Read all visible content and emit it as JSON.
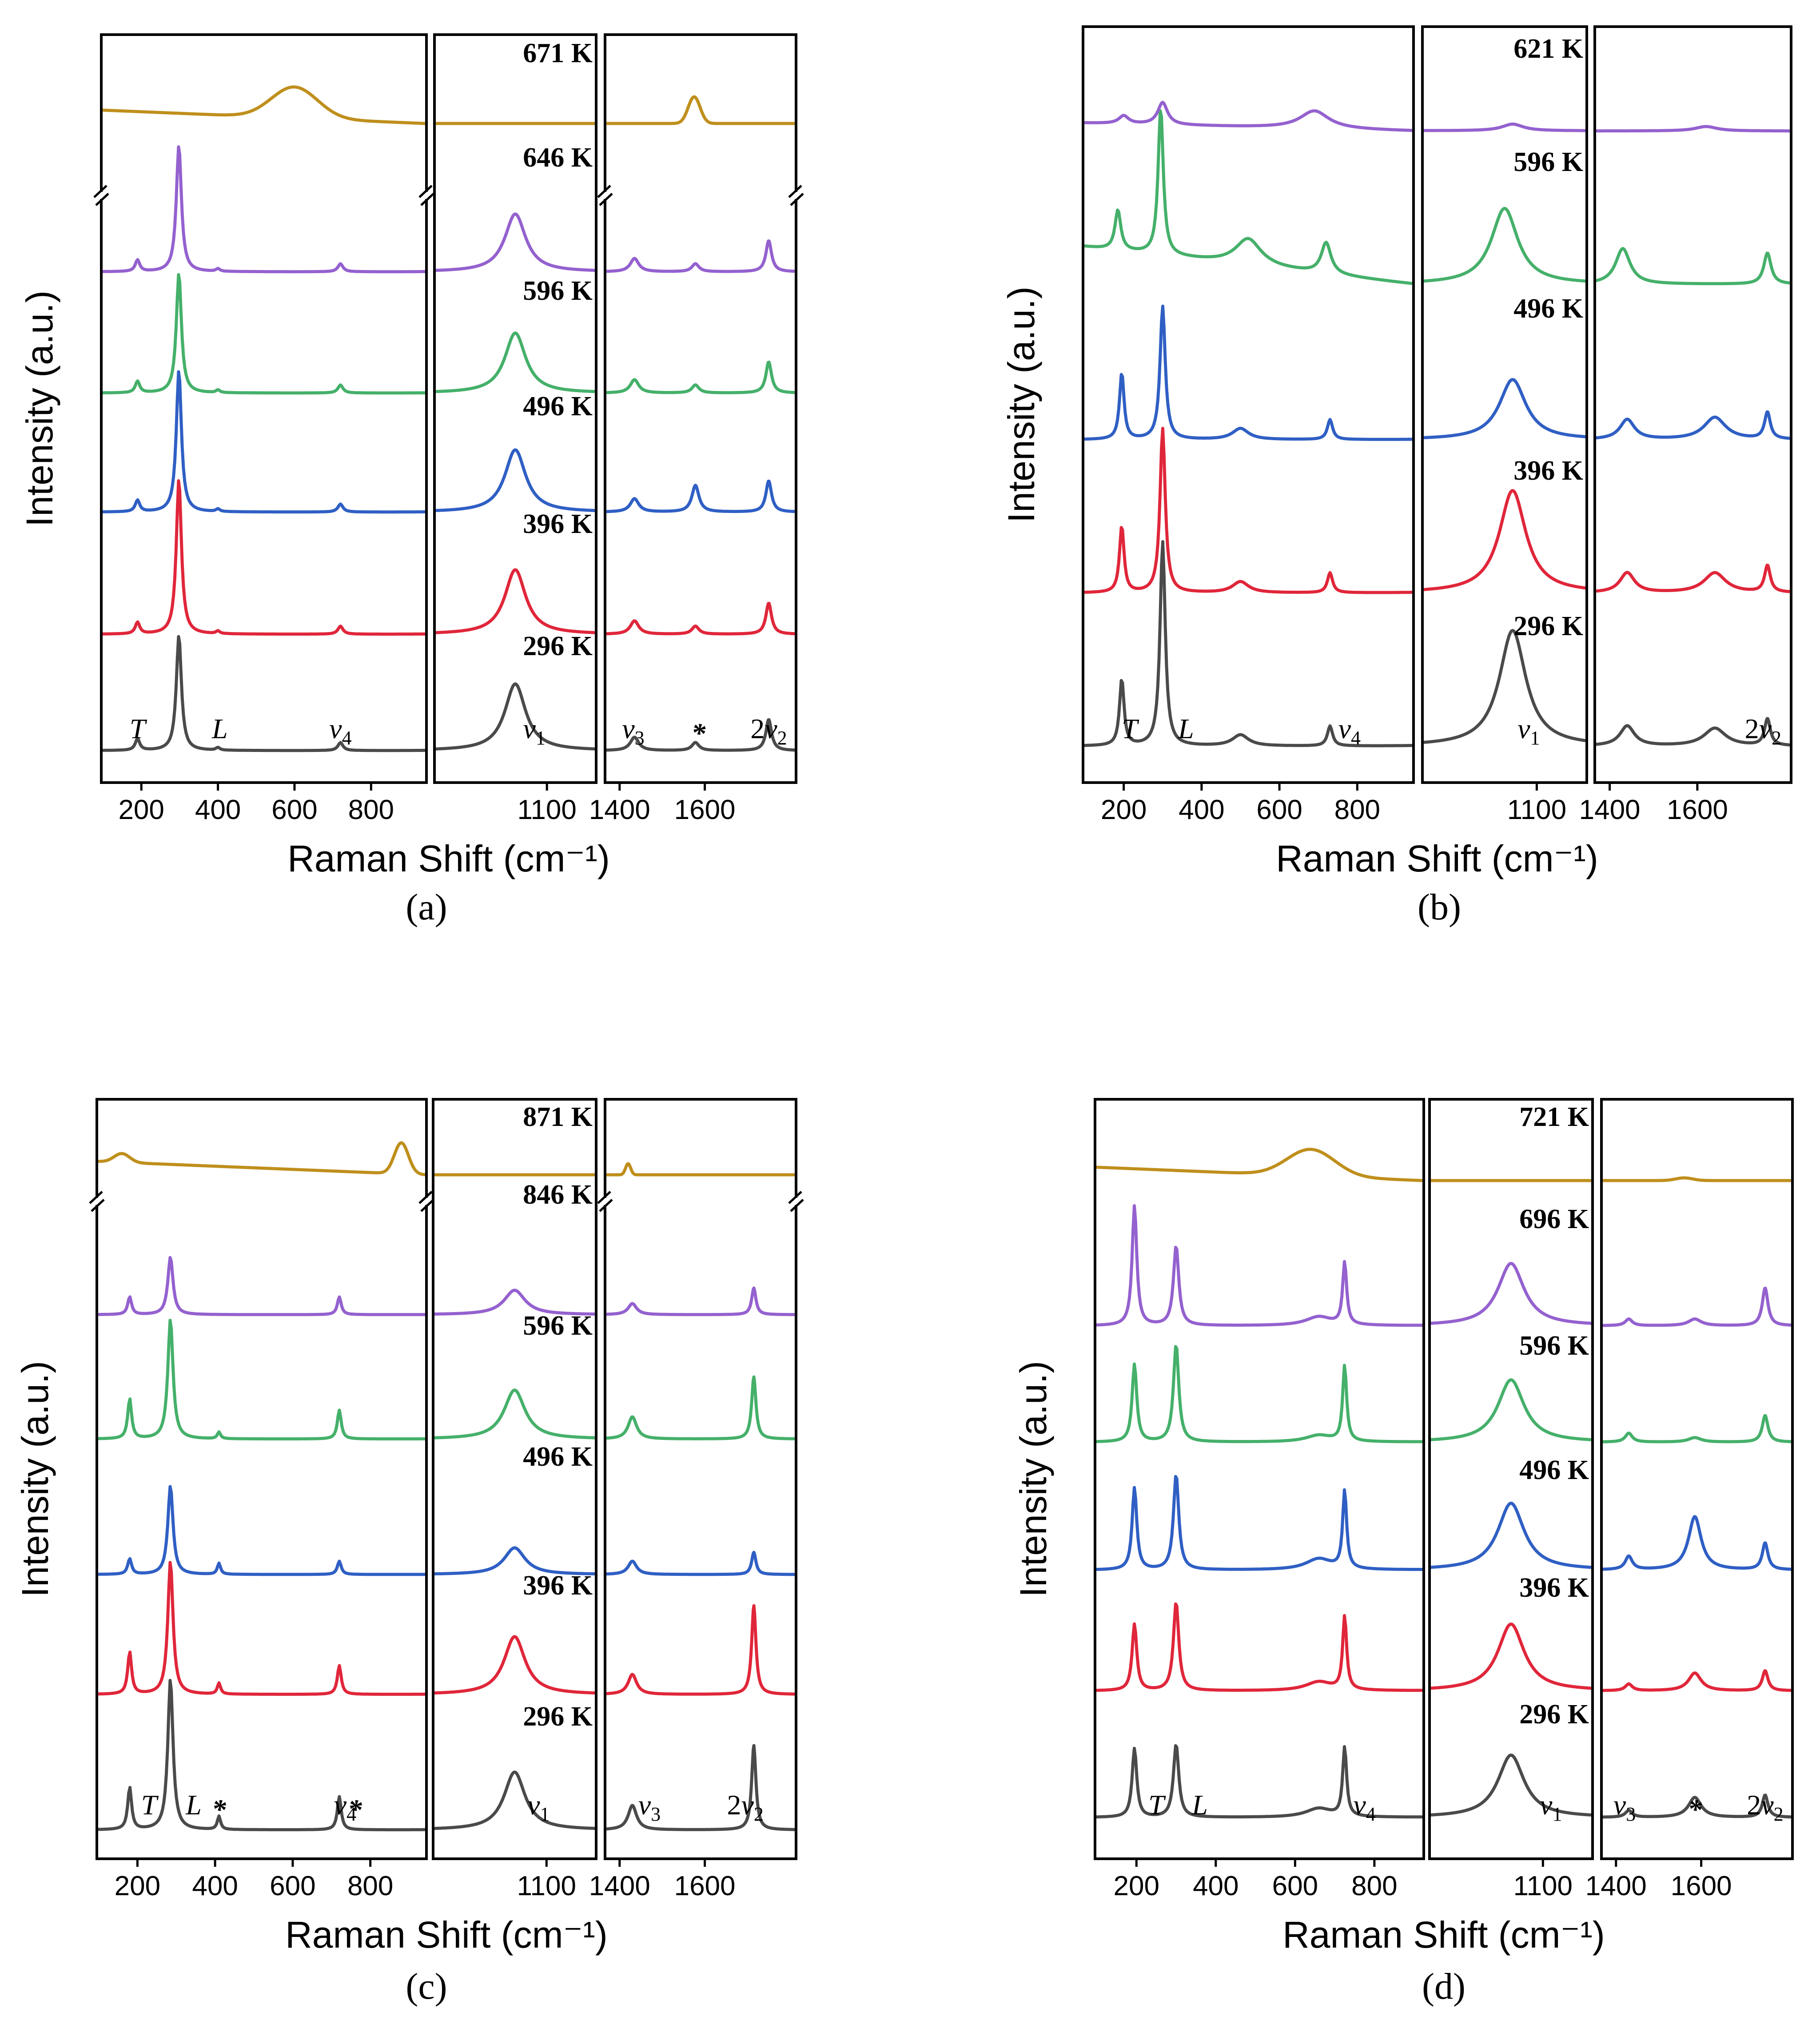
{
  "chart_data": [
    {
      "panel": "(a)",
      "type": "line",
      "title": "",
      "xlabel": "Raman Shift (cm⁻¹)",
      "ylabel": "Intensity (a.u.)",
      "axis_breaks": true,
      "x_ranges": [
        [
          100,
          940
        ],
        [
          1030,
          1130
        ],
        [
          1370,
          1810
        ]
      ],
      "x_ticks": [
        [
          200,
          400,
          600,
          800
        ],
        [
          1100
        ],
        [
          1400,
          1600
        ]
      ],
      "x_tick_labels": [
        "200",
        "400",
        "600",
        "800",
        "1100",
        "1400",
        "1600"
      ],
      "series": [
        {
          "name": "296 K",
          "color": "#4a4a4a"
        },
        {
          "name": "396 K",
          "color": "#e0263a"
        },
        {
          "name": "496 K",
          "color": "#2f5fc4"
        },
        {
          "name": "596 K",
          "color": "#45b06a"
        },
        {
          "name": "646 K",
          "color": "#9461cf"
        },
        {
          "name": "671 K",
          "color": "#bf8f1c"
        }
      ],
      "annotations": [
        {
          "text": "T",
          "x": 190
        },
        {
          "text": "L",
          "x": 405
        },
        {
          "text": "v₄",
          "x": 720
        },
        {
          "text": "v₁",
          "x": 1092
        },
        {
          "text": "v₃",
          "x": 1432
        },
        {
          "text": "*",
          "x": 1585
        },
        {
          "text": "2v₂",
          "x": 1750
        }
      ]
    },
    {
      "panel": "(b)",
      "type": "line",
      "title": "",
      "xlabel": "Raman Shift (cm⁻¹)",
      "ylabel": "Intensity (a.u.)",
      "axis_breaks": false,
      "x_ranges": [
        [
          100,
          940
        ],
        [
          1030,
          1130
        ],
        [
          1370,
          1810
        ]
      ],
      "x_ticks": [
        [
          200,
          400,
          600,
          800
        ],
        [
          1100
        ],
        [
          1400,
          1600
        ]
      ],
      "x_tick_labels": [
        "200",
        "400",
        "600",
        "800",
        "1100",
        "1400",
        "1600"
      ],
      "series": [
        {
          "name": "296 K",
          "color": "#4a4a4a"
        },
        {
          "name": "396 K",
          "color": "#e0263a"
        },
        {
          "name": "496 K",
          "color": "#2f5fc4"
        },
        {
          "name": "596 K",
          "color": "#45b06a"
        },
        {
          "name": "621 K",
          "color": "#9461cf"
        }
      ],
      "annotations": [
        {
          "text": "T",
          "x": 215
        },
        {
          "text": "L",
          "x": 360
        },
        {
          "text": "v₄",
          "x": 780
        },
        {
          "text": "v₁",
          "x": 1095
        },
        {
          "text": "2v₂",
          "x": 1750
        }
      ]
    },
    {
      "panel": "(c)",
      "type": "line",
      "title": "",
      "xlabel": "Raman Shift (cm⁻¹)",
      "ylabel": "Intensity (a.u.)",
      "axis_breaks": true,
      "x_ranges": [
        [
          100,
          940
        ],
        [
          1030,
          1130
        ],
        [
          1370,
          1810
        ]
      ],
      "x_ticks": [
        [
          200,
          400,
          600,
          800
        ],
        [
          1100
        ],
        [
          1400,
          1600
        ]
      ],
      "x_tick_labels": [
        "200",
        "400",
        "600",
        "800",
        "1100",
        "1400",
        "1600"
      ],
      "series": [
        {
          "name": "296 K",
          "color": "#4a4a4a"
        },
        {
          "name": "396 K",
          "color": "#e0263a"
        },
        {
          "name": "496 K",
          "color": "#2f5fc4"
        },
        {
          "name": "596 K",
          "color": "#45b06a"
        },
        {
          "name": "846 K",
          "color": "#9461cf"
        },
        {
          "name": "871 K",
          "color": "#bf8f1c"
        }
      ],
      "annotations": [
        {
          "text": "T",
          "x": 230
        },
        {
          "text": "L",
          "x": 345
        },
        {
          "text": "*",
          "x": 410
        },
        {
          "text": "v₄",
          "x": 735
        },
        {
          "text": "*",
          "x": 760
        },
        {
          "text": "v₁",
          "x": 1095
        },
        {
          "text": "v₃",
          "x": 1470
        },
        {
          "text": "2v₂",
          "x": 1695
        }
      ]
    },
    {
      "panel": "(d)",
      "type": "line",
      "title": "",
      "xlabel": "Raman Shift (cm⁻¹)",
      "ylabel": "Intensity (a.u.)",
      "axis_breaks": false,
      "x_ranges": [
        [
          100,
          920
        ],
        [
          1030,
          1130
        ],
        [
          1370,
          1810
        ]
      ],
      "x_ticks": [
        [
          200,
          400,
          600,
          800
        ],
        [
          1100
        ],
        [
          1400,
          1600
        ]
      ],
      "x_tick_labels": [
        "200",
        "400",
        "600",
        "800",
        "1100",
        "1400",
        "1600"
      ],
      "series": [
        {
          "name": "296 K",
          "color": "#4a4a4a"
        },
        {
          "name": "396 K",
          "color": "#e0263a"
        },
        {
          "name": "496 K",
          "color": "#2f5fc4"
        },
        {
          "name": "596 K",
          "color": "#45b06a"
        },
        {
          "name": "696 K",
          "color": "#9461cf"
        },
        {
          "name": "721 K",
          "color": "#bf8f1c"
        }
      ],
      "annotations": [
        {
          "text": "T",
          "x": 250
        },
        {
          "text": "L",
          "x": 360
        },
        {
          "text": "v₄",
          "x": 775
        },
        {
          "text": "v₁",
          "x": 1105
        },
        {
          "text": "v₃",
          "x": 1420
        },
        {
          "text": "*",
          "x": 1585
        },
        {
          "text": "2v₂",
          "x": 1750
        }
      ]
    }
  ],
  "labels": {
    "a": "(a)",
    "b": "(b)",
    "c": "(c)",
    "d": "(d)",
    "xlabel": "Raman Shift (cm⁻¹)",
    "ylabel": "Intensity (a.u.)"
  }
}
